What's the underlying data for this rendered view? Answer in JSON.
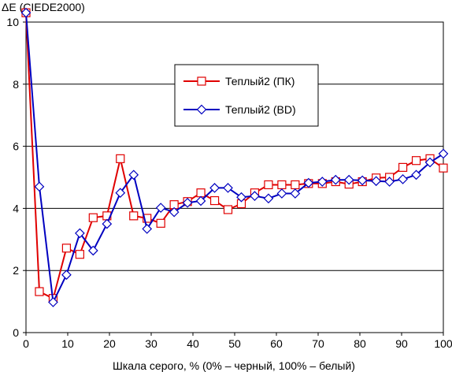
{
  "chart_data": {
    "type": "line",
    "ylabel": "ΔE (CIEDE2000)",
    "xlabel": "Шкала серого, % (0% – черный, 100% – белый)",
    "xlim": [
      0,
      100
    ],
    "ylim": [
      0,
      10
    ],
    "x_ticks": [
      0,
      10,
      20,
      30,
      40,
      50,
      60,
      70,
      80,
      90,
      100
    ],
    "y_ticks": [
      0,
      2,
      4,
      6,
      8,
      10
    ],
    "grid": "horizontal",
    "legend_position": "upper-middle",
    "series": [
      {
        "name": "Теплый2 (ПК)",
        "color": "#e00000",
        "marker": "square",
        "x": [
          0,
          3.2,
          6.5,
          9.7,
          12.9,
          16.1,
          19.4,
          22.6,
          25.8,
          29,
          32.3,
          35.5,
          38.7,
          41.9,
          45.2,
          48.4,
          51.6,
          54.8,
          58.1,
          61.3,
          64.5,
          67.7,
          71,
          74.2,
          77.4,
          80.6,
          83.9,
          87.1,
          90.3,
          93.5,
          96.8,
          100
        ],
        "y": [
          10.3,
          1.32,
          1.1,
          2.72,
          2.52,
          3.7,
          3.76,
          5.6,
          3.76,
          3.68,
          3.52,
          4.12,
          4.22,
          4.5,
          4.25,
          3.96,
          4.15,
          4.5,
          4.76,
          4.76,
          4.76,
          4.8,
          4.8,
          4.86,
          4.78,
          4.86,
          4.98,
          5.0,
          5.32,
          5.54,
          5.6,
          5.3
        ]
      },
      {
        "name": "Теплый2 (BD)",
        "color": "#0000c0",
        "marker": "diamond",
        "x": [
          0,
          3.2,
          6.5,
          9.7,
          12.9,
          16.1,
          19.4,
          22.6,
          25.8,
          29,
          32.3,
          35.5,
          38.7,
          41.9,
          45.2,
          48.4,
          51.6,
          54.8,
          58.1,
          61.3,
          64.5,
          67.7,
          71,
          74.2,
          77.4,
          80.6,
          83.9,
          87.1,
          90.3,
          93.5,
          96.8,
          100
        ],
        "y": [
          10.3,
          4.7,
          0.98,
          1.86,
          3.2,
          2.64,
          3.5,
          4.5,
          5.08,
          3.34,
          4.02,
          3.88,
          4.18,
          4.24,
          4.66,
          4.66,
          4.36,
          4.4,
          4.32,
          4.48,
          4.48,
          4.82,
          4.86,
          4.92,
          4.92,
          4.9,
          4.88,
          4.86,
          4.94,
          5.08,
          5.48,
          5.76
        ]
      }
    ]
  }
}
